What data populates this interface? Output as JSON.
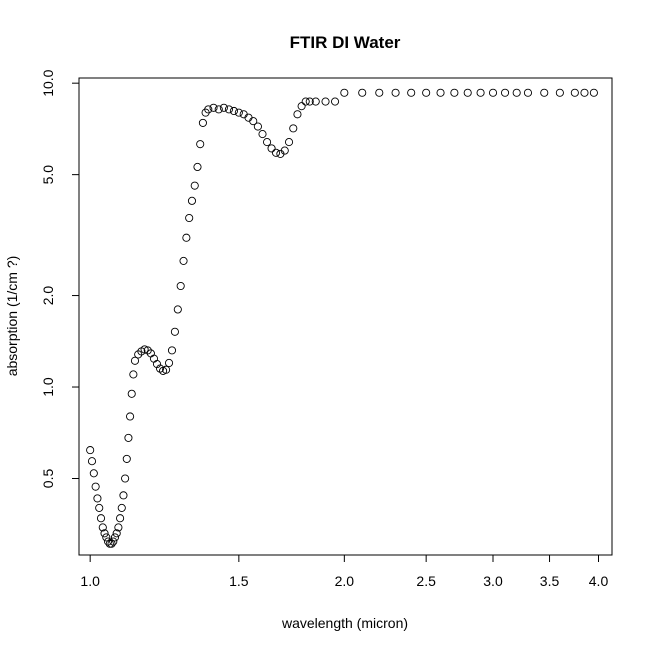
{
  "chart_data": {
    "type": "scatter",
    "title": "FTIR DI Water",
    "xlabel": "wavelength (micron)",
    "ylabel": "absorption (1/cm ?)",
    "xscale": "log",
    "yscale": "log",
    "xlim": [
      0.97,
      4.15
    ],
    "ylim": [
      0.28,
      10.4
    ],
    "xticks": [
      1.0,
      1.5,
      2.0,
      2.5,
      3.0,
      3.5,
      4.0
    ],
    "xtick_labels": [
      "1.0",
      "1.5",
      "2.0",
      "2.5",
      "3.0",
      "3.5",
      "4.0"
    ],
    "yticks": [
      0.5,
      1.0,
      2.0,
      5.0,
      10.0
    ],
    "ytick_labels": [
      "0.5",
      "1.0",
      "2.0",
      "5.0",
      "10.0"
    ],
    "grid": false,
    "legend": "none",
    "marker": "open-circle",
    "series": [
      {
        "points": [
          [
            1.0,
            0.62
          ],
          [
            1.005,
            0.57
          ],
          [
            1.01,
            0.52
          ],
          [
            1.015,
            0.47
          ],
          [
            1.02,
            0.43
          ],
          [
            1.025,
            0.4
          ],
          [
            1.03,
            0.37
          ],
          [
            1.035,
            0.345
          ],
          [
            1.04,
            0.33
          ],
          [
            1.045,
            0.32
          ],
          [
            1.05,
            0.31
          ],
          [
            1.055,
            0.305
          ],
          [
            1.06,
            0.305
          ],
          [
            1.065,
            0.31
          ],
          [
            1.07,
            0.32
          ],
          [
            1.075,
            0.33
          ],
          [
            1.08,
            0.345
          ],
          [
            1.085,
            0.37
          ],
          [
            1.09,
            0.4
          ],
          [
            1.095,
            0.44
          ],
          [
            1.1,
            0.5
          ],
          [
            1.105,
            0.58
          ],
          [
            1.11,
            0.68
          ],
          [
            1.115,
            0.8
          ],
          [
            1.12,
            0.95
          ],
          [
            1.125,
            1.1
          ],
          [
            1.13,
            1.22
          ],
          [
            1.14,
            1.28
          ],
          [
            1.15,
            1.31
          ],
          [
            1.16,
            1.33
          ],
          [
            1.17,
            1.32
          ],
          [
            1.18,
            1.29
          ],
          [
            1.19,
            1.24
          ],
          [
            1.2,
            1.19
          ],
          [
            1.21,
            1.15
          ],
          [
            1.22,
            1.13
          ],
          [
            1.23,
            1.14
          ],
          [
            1.24,
            1.2
          ],
          [
            1.25,
            1.32
          ],
          [
            1.26,
            1.52
          ],
          [
            1.27,
            1.8
          ],
          [
            1.28,
            2.15
          ],
          [
            1.29,
            2.6
          ],
          [
            1.3,
            3.1
          ],
          [
            1.31,
            3.6
          ],
          [
            1.32,
            4.1
          ],
          [
            1.33,
            4.6
          ],
          [
            1.34,
            5.3
          ],
          [
            1.35,
            6.3
          ],
          [
            1.36,
            7.4
          ],
          [
            1.37,
            8.0
          ],
          [
            1.38,
            8.2
          ],
          [
            1.4,
            8.3
          ],
          [
            1.42,
            8.2
          ],
          [
            1.44,
            8.3
          ],
          [
            1.46,
            8.2
          ],
          [
            1.48,
            8.1
          ],
          [
            1.5,
            8.0
          ],
          [
            1.52,
            7.9
          ],
          [
            1.54,
            7.7
          ],
          [
            1.56,
            7.5
          ],
          [
            1.58,
            7.2
          ],
          [
            1.6,
            6.8
          ],
          [
            1.62,
            6.4
          ],
          [
            1.64,
            6.1
          ],
          [
            1.66,
            5.9
          ],
          [
            1.68,
            5.85
          ],
          [
            1.7,
            6.0
          ],
          [
            1.72,
            6.4
          ],
          [
            1.74,
            7.1
          ],
          [
            1.76,
            7.9
          ],
          [
            1.78,
            8.4
          ],
          [
            1.8,
            8.7
          ],
          [
            1.82,
            8.7
          ],
          [
            1.85,
            8.7
          ],
          [
            1.9,
            8.7
          ],
          [
            1.95,
            8.7
          ],
          [
            2.0,
            9.3
          ],
          [
            2.1,
            9.3
          ],
          [
            2.2,
            9.3
          ],
          [
            2.3,
            9.3
          ],
          [
            2.4,
            9.3
          ],
          [
            2.5,
            9.3
          ],
          [
            2.6,
            9.3
          ],
          [
            2.7,
            9.3
          ],
          [
            2.8,
            9.3
          ],
          [
            2.9,
            9.3
          ],
          [
            3.0,
            9.3
          ],
          [
            3.1,
            9.3
          ],
          [
            3.2,
            9.3
          ],
          [
            3.3,
            9.3
          ],
          [
            3.45,
            9.3
          ],
          [
            3.6,
            9.3
          ],
          [
            3.75,
            9.3
          ],
          [
            3.85,
            9.3
          ],
          [
            3.95,
            9.3
          ]
        ]
      }
    ]
  }
}
